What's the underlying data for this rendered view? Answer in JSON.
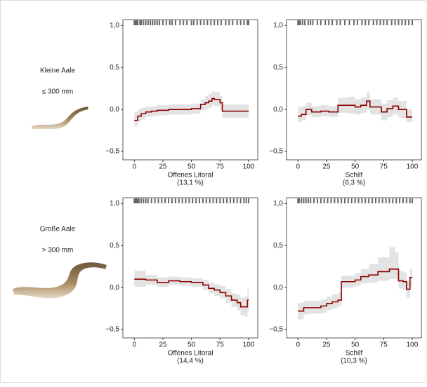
{
  "rows": [
    {
      "label": "Kleine Aale",
      "size": "≤ 300 mm"
    },
    {
      "label": "Große Aale",
      "size": "> 300 mm"
    }
  ],
  "chart_data": [
    {
      "type": "line",
      "xlabel": "Offenes Litoral",
      "xlabel_note": "(13,1 %)",
      "xlim": [
        -10,
        108
      ],
      "ylim": [
        -0.6,
        1.07
      ],
      "xticks": [
        0,
        25,
        50,
        75,
        100
      ],
      "yticks": [
        {
          "value": -0.5,
          "label": "−0,5"
        },
        {
          "value": 0,
          "label": "0,0"
        },
        {
          "value": 0.5,
          "label": "0,5"
        },
        {
          "value": 1,
          "label": "1,0"
        }
      ],
      "color": "#8b0000",
      "band_color": "#e3e3e3",
      "x": [
        0,
        3,
        6,
        10,
        15,
        20,
        30,
        40,
        50,
        57,
        58,
        62,
        65,
        68,
        70,
        73,
        75,
        77,
        100
      ],
      "values": [
        -0.13,
        -0.08,
        -0.05,
        -0.03,
        -0.02,
        -0.01,
        0,
        0,
        0.01,
        0.01,
        0.06,
        0.08,
        0.1,
        0.13,
        0.12,
        0.12,
        0.08,
        -0.02,
        -0.02
      ],
      "lower": [
        -0.2,
        -0.15,
        -0.12,
        -0.09,
        -0.08,
        -0.07,
        -0.06,
        -0.06,
        -0.05,
        -0.05,
        -0.01,
        0,
        0.02,
        0.05,
        0.04,
        0.04,
        -0.01,
        -0.1,
        -0.1
      ],
      "upper": [
        -0.03,
        0,
        0.02,
        0.03,
        0.04,
        0.05,
        0.06,
        0.06,
        0.07,
        0.07,
        0.12,
        0.16,
        0.19,
        0.22,
        0.21,
        0.2,
        0.16,
        0.06,
        0.06
      ],
      "rug": [
        0,
        1,
        2,
        3,
        5,
        6,
        8,
        10,
        12,
        14,
        16,
        18,
        20,
        22,
        25,
        28,
        31,
        33,
        36,
        40,
        43,
        46,
        50,
        52,
        55,
        58,
        61,
        64,
        67,
        70,
        73,
        76,
        80,
        83,
        86,
        90,
        93,
        96,
        99,
        100
      ]
    },
    {
      "type": "line",
      "xlabel": "Schilf",
      "xlabel_note": "(6,3 %)",
      "xlim": [
        -10,
        108
      ],
      "ylim": [
        -0.6,
        1.07
      ],
      "xticks": [
        0,
        25,
        50,
        75,
        100
      ],
      "yticks": [
        {
          "value": -0.5,
          "label": "−0,5"
        },
        {
          "value": 0,
          "label": "0,0"
        },
        {
          "value": 0.5,
          "label": "0,5"
        },
        {
          "value": 1,
          "label": "1,0"
        }
      ],
      "color": "#8b0000",
      "band_color": "#e3e3e3",
      "x": [
        0,
        3,
        7,
        12,
        20,
        27,
        35,
        45,
        50,
        55,
        60,
        63,
        70,
        73,
        78,
        83,
        88,
        95,
        100
      ],
      "values": [
        -0.08,
        -0.06,
        0,
        -0.03,
        -0.02,
        -0.03,
        0.05,
        0.05,
        0.03,
        0.05,
        0.1,
        0.03,
        0.03,
        -0.03,
        0.01,
        0.04,
        0,
        -0.09,
        -0.09
      ],
      "lower": [
        -0.15,
        -0.13,
        -0.07,
        -0.09,
        -0.08,
        -0.09,
        -0.04,
        -0.05,
        -0.06,
        -0.04,
        0,
        -0.06,
        -0.06,
        -0.13,
        -0.09,
        -0.06,
        -0.1,
        -0.15,
        -0.15
      ],
      "upper": [
        0.03,
        0.04,
        0.08,
        0.04,
        0.05,
        0.04,
        0.14,
        0.15,
        0.12,
        0.14,
        0.2,
        0.12,
        0.12,
        0.07,
        0.11,
        0.14,
        0.1,
        0,
        0
      ],
      "rug": [
        0,
        1,
        2,
        4,
        6,
        9,
        11,
        13,
        17,
        20,
        24,
        27,
        30,
        34,
        37,
        41,
        45,
        49,
        52,
        56,
        59,
        62,
        66,
        69,
        72,
        75,
        78,
        82,
        85,
        88,
        91,
        94,
        97,
        100
      ]
    },
    {
      "type": "line",
      "xlabel": "Offenes Litoral",
      "xlabel_note": "(14,4 %)",
      "xlim": [
        -10,
        108
      ],
      "ylim": [
        -0.6,
        1.07
      ],
      "xticks": [
        0,
        25,
        50,
        75,
        100
      ],
      "yticks": [
        {
          "value": -0.5,
          "label": "−0,5"
        },
        {
          "value": 0,
          "label": "0,0"
        },
        {
          "value": 0.5,
          "label": "0,5"
        },
        {
          "value": 1,
          "label": "1,0"
        }
      ],
      "color": "#8b0000",
      "band_color": "#e3e3e3",
      "x": [
        0,
        10,
        20,
        30,
        40,
        50,
        60,
        65,
        70,
        75,
        80,
        85,
        90,
        93,
        97,
        99,
        100
      ],
      "values": [
        0.1,
        0.09,
        0.06,
        0.08,
        0.07,
        0.06,
        0.03,
        -0.01,
        -0.03,
        -0.06,
        -0.1,
        -0.15,
        -0.18,
        -0.23,
        -0.23,
        -0.15,
        -0.15
      ],
      "lower": [
        0.01,
        0.03,
        0.01,
        0.03,
        0.02,
        0.01,
        -0.03,
        -0.07,
        -0.1,
        -0.13,
        -0.18,
        -0.23,
        -0.27,
        -0.33,
        -0.35,
        -0.3,
        -0.3
      ],
      "upper": [
        0.2,
        0.15,
        0.12,
        0.13,
        0.12,
        0.11,
        0.09,
        0.06,
        0.04,
        0.02,
        -0.02,
        -0.07,
        -0.09,
        -0.12,
        -0.1,
        0,
        0
      ],
      "rug": [
        0,
        1,
        2,
        3,
        4,
        6,
        8,
        10,
        12,
        15,
        18,
        21,
        24,
        27,
        30,
        33,
        36,
        39,
        42,
        45,
        48,
        51,
        54,
        57,
        60,
        63,
        66,
        69,
        72,
        75,
        78,
        81,
        84,
        87,
        90,
        93,
        96,
        98,
        100
      ]
    },
    {
      "type": "line",
      "xlabel": "Schilf",
      "xlabel_note": "(10,3 %)",
      "xlim": [
        -10,
        108
      ],
      "ylim": [
        -0.6,
        1.07
      ],
      "xticks": [
        0,
        25,
        50,
        75,
        100
      ],
      "yticks": [
        {
          "value": -0.5,
          "label": "−0,5"
        },
        {
          "value": 0,
          "label": "0,0"
        },
        {
          "value": 0.5,
          "label": "0,5"
        },
        {
          "value": 1,
          "label": "1,0"
        }
      ],
      "color": "#8b0000",
      "band_color": "#e3e3e3",
      "x": [
        0,
        5,
        10,
        20,
        25,
        30,
        35,
        38,
        50,
        55,
        62,
        70,
        80,
        85,
        88,
        92,
        95,
        98,
        100
      ],
      "values": [
        -0.28,
        -0.24,
        -0.24,
        -0.22,
        -0.19,
        -0.17,
        -0.15,
        0.07,
        0.09,
        0.13,
        0.15,
        0.19,
        0.22,
        0.22,
        0.08,
        0.07,
        -0.02,
        0.12,
        0.12
      ],
      "lower": [
        -0.38,
        -0.32,
        -0.31,
        -0.3,
        -0.27,
        -0.25,
        -0.22,
        0,
        0.02,
        0.05,
        0.06,
        0.08,
        0.1,
        0.1,
        -0.01,
        -0.03,
        -0.12,
        0,
        0
      ],
      "upper": [
        -0.18,
        -0.16,
        -0.16,
        -0.14,
        -0.11,
        -0.08,
        -0.06,
        0.14,
        0.17,
        0.22,
        0.28,
        0.36,
        0.48,
        0.42,
        0.2,
        0.18,
        0.08,
        0.22,
        0.22
      ],
      "rug": [
        0,
        1,
        3,
        5,
        7,
        9,
        11,
        14,
        17,
        20,
        23,
        26,
        29,
        32,
        35,
        38,
        41,
        44,
        47,
        50,
        53,
        56,
        59,
        62,
        65,
        68,
        71,
        74,
        77,
        80,
        83,
        86,
        89,
        92,
        95,
        98,
        100
      ]
    }
  ]
}
